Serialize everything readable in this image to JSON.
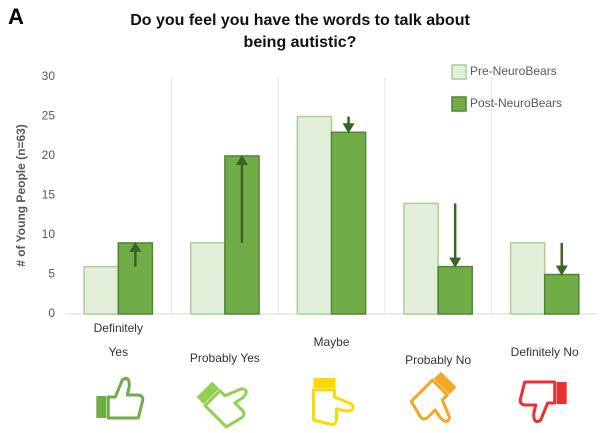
{
  "panel_label": "A",
  "chart_data": {
    "type": "bar",
    "title": "Do you feel you have the words to talk about being autistic?",
    "ylabel": "# of Young People (n=63)",
    "categories": [
      "Definitely Yes",
      "Probably Yes",
      "Maybe",
      "Probably No",
      "Definitely No"
    ],
    "series": [
      {
        "name": "Pre-NeuroBears",
        "color": "#e2efda",
        "values": [
          6,
          9,
          25,
          14,
          9
        ]
      },
      {
        "name": "Post-NeuroBears",
        "color": "#70ad47",
        "values": [
          9,
          20,
          23,
          6,
          5
        ]
      }
    ],
    "ylim": [
      0,
      30
    ],
    "yticks": [
      0,
      5,
      10,
      15,
      20,
      25,
      30
    ],
    "legend": "top-right"
  }
}
